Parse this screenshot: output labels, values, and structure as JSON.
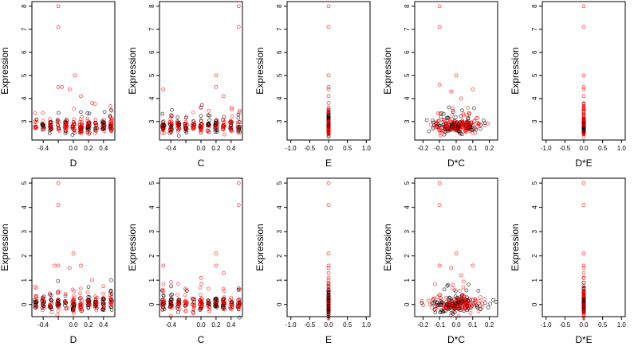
{
  "figure": {
    "ylabel": "Expression"
  },
  "colors": {
    "points_a": "#000000",
    "points_b": "#ff0000"
  },
  "chart_data": [
    {
      "type": "scatter",
      "xlabel": "D",
      "ylabel": "Expression",
      "xlim": [
        -0.55,
        0.55
      ],
      "ylim": [
        2.2,
        8.2
      ],
      "xticks": [
        -0.4,
        -0.2,
        0.0,
        0.2,
        0.4
      ],
      "xtick_labels": [
        "-0.4",
        "",
        "0.0",
        "0.2",
        "0.4"
      ],
      "yticks": [
        3,
        4,
        5,
        6,
        7,
        8
      ],
      "ytick_labels": [
        "3",
        "4",
        "5",
        "6",
        "7",
        "8"
      ],
      "x_spread": 0.5,
      "baseline": 2.8,
      "y_spread": 0.5,
      "outliers": [
        [
          -0.2,
          8.0
        ],
        [
          -0.2,
          7.1
        ],
        [
          -0.2,
          4.5
        ],
        [
          -0.15,
          4.5
        ],
        [
          0.02,
          5.0
        ],
        [
          -0.05,
          4.4
        ],
        [
          0.1,
          4.1
        ],
        [
          0.25,
          3.8
        ]
      ]
    },
    {
      "type": "scatter",
      "xlabel": "C",
      "ylabel": "Expression",
      "xlim": [
        -0.55,
        0.55
      ],
      "ylim": [
        2.2,
        8.2
      ],
      "xticks": [
        -0.4,
        -0.2,
        0.0,
        0.2,
        0.4
      ],
      "xtick_labels": [
        "-0.4",
        "",
        "0.0",
        "0.2",
        "0.4"
      ],
      "yticks": [
        3,
        4,
        5,
        6,
        7,
        8
      ],
      "ytick_labels": [
        "3",
        "4",
        "5",
        "6",
        "7",
        "8"
      ],
      "x_spread": 0.5,
      "baseline": 2.8,
      "y_spread": 0.5,
      "outliers": [
        [
          0.5,
          8.0
        ],
        [
          0.5,
          7.1
        ],
        [
          0.2,
          5.0
        ],
        [
          -0.5,
          4.4
        ],
        [
          0.2,
          4.5
        ],
        [
          0.3,
          4.1
        ],
        [
          0.0,
          3.6
        ]
      ]
    },
    {
      "type": "scatter",
      "xlabel": "E",
      "ylabel": "Expression",
      "xlim": [
        -1.1,
        1.1
      ],
      "ylim": [
        2.2,
        8.2
      ],
      "xticks": [
        -1.0,
        -0.5,
        0.0,
        0.5,
        1.0
      ],
      "xtick_labels": [
        "-1.0",
        "-0.5",
        "0.0",
        "0.5",
        "1.0"
      ],
      "yticks": [
        3,
        4,
        5,
        6,
        7,
        8
      ],
      "ytick_labels": [
        "3",
        "4",
        "5",
        "6",
        "7",
        "8"
      ],
      "x_spread": 0.0,
      "baseline": 2.8,
      "y_spread": 0.5,
      "outliers": [
        [
          0,
          8.0
        ],
        [
          0,
          7.1
        ],
        [
          0,
          5.0
        ],
        [
          0,
          4.5
        ],
        [
          0,
          4.4
        ],
        [
          0,
          4.1
        ],
        [
          0,
          3.8
        ],
        [
          0,
          3.6
        ]
      ]
    },
    {
      "type": "scatter",
      "xlabel": "D*C",
      "ylabel": "Expression",
      "xlim": [
        -0.25,
        0.25
      ],
      "ylim": [
        2.2,
        8.2
      ],
      "xticks": [
        -0.2,
        -0.1,
        0.0,
        0.1,
        0.2
      ],
      "xtick_labels": [
        "-0.2",
        "-0.1",
        "0.0",
        "0.1",
        "0.2"
      ],
      "yticks": [
        3,
        4,
        5,
        6,
        7,
        8
      ],
      "ytick_labels": [
        "3",
        "4",
        "5",
        "6",
        "7",
        "8"
      ],
      "x_spread": 0.24,
      "baseline": 2.8,
      "y_spread": 0.5,
      "outliers": [
        [
          -0.1,
          8.0
        ],
        [
          -0.1,
          7.1
        ],
        [
          -0.1,
          4.6
        ],
        [
          0.0,
          5.0
        ],
        [
          -0.03,
          4.3
        ],
        [
          0.1,
          4.4
        ],
        [
          0.03,
          4.0
        ]
      ]
    },
    {
      "type": "scatter",
      "xlabel": "D*E",
      "ylabel": "Expression",
      "xlim": [
        -1.1,
        1.1
      ],
      "ylim": [
        2.2,
        8.2
      ],
      "xticks": [
        -1.0,
        -0.5,
        0.0,
        0.5,
        1.0
      ],
      "xtick_labels": [
        "-1.0",
        "-0.5",
        "0.0",
        "0.5",
        "1.0"
      ],
      "yticks": [
        3,
        4,
        5,
        6,
        7,
        8
      ],
      "ytick_labels": [
        "3",
        "4",
        "5",
        "6",
        "7",
        "8"
      ],
      "x_spread": 0.0,
      "baseline": 2.8,
      "y_spread": 0.5,
      "outliers": [
        [
          0,
          8.0
        ],
        [
          0,
          7.1
        ],
        [
          0,
          5.0
        ],
        [
          0,
          4.5
        ],
        [
          0,
          4.4
        ],
        [
          0,
          4.1
        ],
        [
          0,
          3.8
        ],
        [
          0,
          3.6
        ]
      ]
    },
    {
      "type": "scatter",
      "xlabel": "D",
      "ylabel": "Expression",
      "xlim": [
        -0.55,
        0.55
      ],
      "ylim": [
        -0.5,
        5.2
      ],
      "xticks": [
        -0.4,
        -0.2,
        0.0,
        0.2,
        0.4
      ],
      "xtick_labels": [
        "-0.4",
        "",
        "0.0",
        "0.2",
        "0.4"
      ],
      "yticks": [
        0,
        1,
        2,
        3,
        4,
        5
      ],
      "ytick_labels": [
        "0",
        "1",
        "2",
        "3",
        "4",
        "5"
      ],
      "x_spread": 0.5,
      "baseline": 0.0,
      "y_spread": 0.5,
      "outliers": [
        [
          -0.2,
          5.0
        ],
        [
          -0.2,
          4.1
        ],
        [
          -0.25,
          1.6
        ],
        [
          -0.2,
          1.6
        ],
        [
          0.0,
          2.1
        ],
        [
          -0.05,
          1.5
        ],
        [
          0.1,
          1.6
        ],
        [
          0.25,
          1.0
        ]
      ]
    },
    {
      "type": "scatter",
      "xlabel": "C",
      "ylabel": "Expression",
      "xlim": [
        -0.55,
        0.55
      ],
      "ylim": [
        -0.5,
        5.2
      ],
      "xticks": [
        -0.4,
        -0.2,
        0.0,
        0.2,
        0.4
      ],
      "xtick_labels": [
        "-0.4",
        "",
        "0.0",
        "0.2",
        "0.4"
      ],
      "yticks": [
        0,
        1,
        2,
        3,
        4,
        5
      ],
      "ytick_labels": [
        "0",
        "1",
        "2",
        "3",
        "4",
        "5"
      ],
      "x_spread": 0.5,
      "baseline": 0.0,
      "y_spread": 0.5,
      "outliers": [
        [
          0.5,
          5.0
        ],
        [
          0.5,
          4.1
        ],
        [
          0.2,
          2.1
        ],
        [
          0.2,
          1.6
        ],
        [
          -0.5,
          1.6
        ],
        [
          0.3,
          1.3
        ],
        [
          0.0,
          1.1
        ]
      ]
    },
    {
      "type": "scatter",
      "xlabel": "E",
      "ylabel": "Expression",
      "xlim": [
        -1.1,
        1.1
      ],
      "ylim": [
        -0.5,
        5.2
      ],
      "xticks": [
        -1.0,
        -0.5,
        0.0,
        0.5,
        1.0
      ],
      "xtick_labels": [
        "-1.0",
        "-0.5",
        "0.0",
        "0.5",
        "1.0"
      ],
      "yticks": [
        0,
        1,
        2,
        3,
        4,
        5
      ],
      "ytick_labels": [
        "0",
        "1",
        "2",
        "3",
        "4",
        "5"
      ],
      "x_spread": 0.0,
      "baseline": 0.0,
      "y_spread": 0.5,
      "outliers": [
        [
          0,
          5.0
        ],
        [
          0,
          4.1
        ],
        [
          0,
          2.1
        ],
        [
          0,
          1.6
        ],
        [
          0,
          1.5
        ],
        [
          0,
          1.3
        ],
        [
          0,
          1.1
        ],
        [
          0,
          0.9
        ]
      ]
    },
    {
      "type": "scatter",
      "xlabel": "D*C",
      "ylabel": "Expression",
      "xlim": [
        -0.25,
        0.25
      ],
      "ylim": [
        -0.5,
        5.2
      ],
      "xticks": [
        -0.2,
        -0.1,
        0.0,
        0.1,
        0.2
      ],
      "xtick_labels": [
        "-0.2",
        "-0.1",
        "0.0",
        "0.1",
        "0.2"
      ],
      "yticks": [
        0,
        1,
        2,
        3,
        4,
        5
      ],
      "ytick_labels": [
        "0",
        "1",
        "2",
        "3",
        "4",
        "5"
      ],
      "x_spread": 0.24,
      "baseline": 0.0,
      "y_spread": 0.5,
      "outliers": [
        [
          -0.1,
          5.0
        ],
        [
          -0.1,
          4.1
        ],
        [
          -0.1,
          1.6
        ],
        [
          0.0,
          2.1
        ],
        [
          -0.03,
          1.5
        ],
        [
          0.1,
          1.6
        ],
        [
          0.03,
          1.2
        ]
      ]
    },
    {
      "type": "scatter",
      "xlabel": "D*E",
      "ylabel": "Expression",
      "xlim": [
        -1.1,
        1.1
      ],
      "ylim": [
        -0.5,
        5.2
      ],
      "xticks": [
        -1.0,
        -0.5,
        0.0,
        0.5,
        1.0
      ],
      "xtick_labels": [
        "-1.0",
        "-0.5",
        "0.0",
        "0.5",
        "1.0"
      ],
      "yticks": [
        0,
        1,
        2,
        3,
        4,
        5
      ],
      "ytick_labels": [
        "0",
        "1",
        "2",
        "3",
        "4",
        "5"
      ],
      "x_spread": 0.0,
      "baseline": 0.0,
      "y_spread": 0.5,
      "outliers": [
        [
          0,
          5.0
        ],
        [
          0,
          4.1
        ],
        [
          0,
          2.1
        ],
        [
          0,
          1.6
        ],
        [
          0,
          1.5
        ],
        [
          0,
          1.3
        ],
        [
          0,
          1.1
        ],
        [
          0,
          0.9
        ]
      ]
    }
  ]
}
